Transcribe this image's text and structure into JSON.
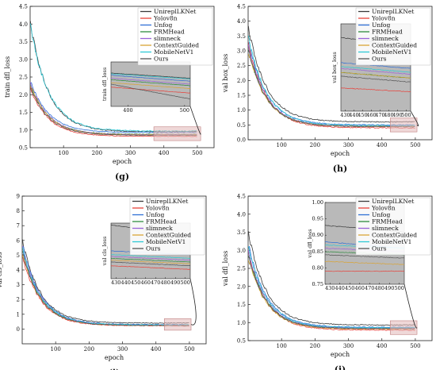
{
  "figure": {
    "colors": {
      "UnireplLKNet": "#3a3a3a",
      "Yolov8n": "#e8413a",
      "Unfog": "#2f6fd6",
      "FRMHead": "#2e8b3e",
      "slimneck": "#9a63d8",
      "ContextGuided": "#d9a436",
      "MobileNetV1": "#2cc9d6",
      "Ours": "#555555"
    },
    "inset_background": "#b9b9b9",
    "highlight_box_color": "#e2b8b8"
  },
  "chart_data": [
    {
      "id": "g",
      "type": "line",
      "caption": "(g)",
      "xlabel": "epoch",
      "ylabel": "train dfl_loss",
      "xlim": [
        0,
        550
      ],
      "ylim": [
        0.5,
        4.5
      ],
      "xticks": [
        100,
        200,
        300,
        400,
        500
      ],
      "yticks": [
        0.5,
        1.0,
        1.5,
        2.0,
        2.5,
        3.0,
        3.5,
        4.0,
        4.5
      ],
      "ytick_labels": [
        "0.5",
        "1.0",
        "1.5",
        "2.0",
        "2.5",
        "3.0",
        "3.5",
        "4.0",
        "4.5"
      ],
      "legend_position": "top-right",
      "series": [
        {
          "name": "UnireplLKNet",
          "start": 4.05,
          "end": 0.95,
          "peak": 4.05
        },
        {
          "name": "Yolov8n",
          "start": 2.2,
          "end": 0.82,
          "peak": 2.2
        },
        {
          "name": "Unfog",
          "start": 2.4,
          "end": 0.93,
          "peak": 2.4
        },
        {
          "name": "FRMHead",
          "start": 2.3,
          "end": 0.88,
          "peak": 2.3
        },
        {
          "name": "slimneck",
          "start": 2.35,
          "end": 0.87,
          "peak": 2.35
        },
        {
          "name": "ContextGuided",
          "start": 2.3,
          "end": 0.86,
          "peak": 2.3
        },
        {
          "name": "MobileNetV1",
          "start": 4.0,
          "end": 0.97,
          "peak": 4.0
        },
        {
          "name": "Ours",
          "start": 2.25,
          "end": 0.85,
          "peak": 2.25
        }
      ],
      "inset": {
        "ylabel": "train dfl_loss",
        "xlim": [
          370,
          510
        ],
        "xticks": [
          400,
          500
        ],
        "ylim": [
          0.6,
          1.2
        ],
        "values_at_start": {
          "UnireplLKNet": 1.05,
          "Yolov8n": 0.86,
          "Unfog": 1.02,
          "FRMHead": 0.96,
          "slimneck": 0.98,
          "ContextGuided": 0.92,
          "MobileNetV1": 1.04,
          "Ours": 0.9
        },
        "values_at_end": {
          "UnireplLKNet": 0.98,
          "Yolov8n": 0.78,
          "Unfog": 0.94,
          "FRMHead": 0.88,
          "slimneck": 0.9,
          "ContextGuided": 0.84,
          "MobileNetV1": 0.97,
          "Ours": 0.7
        }
      }
    },
    {
      "id": "h",
      "type": "line",
      "caption": "(h)",
      "xlabel": "epoch",
      "ylabel": "val box_loss",
      "xlim": [
        0,
        550
      ],
      "ylim": [
        0.0,
        4.5
      ],
      "xticks": [
        100,
        200,
        300,
        400,
        500
      ],
      "yticks": [
        0.0,
        0.5,
        1.0,
        1.5,
        2.0,
        2.5,
        3.0,
        3.5,
        4.0,
        4.5
      ],
      "ytick_labels": [
        "0.0",
        "0.5",
        "1.0",
        "1.5",
        "2.0",
        "2.5",
        "3.0",
        "3.5",
        "4.0",
        "4.5"
      ],
      "legend_position": "top-right",
      "series": [
        {
          "name": "UnireplLKNet",
          "start": 3.8,
          "end": 0.6,
          "peak": 3.8
        },
        {
          "name": "Yolov8n",
          "start": 3.3,
          "end": 0.4,
          "peak": 3.3
        },
        {
          "name": "Unfog",
          "start": 3.4,
          "end": 0.5,
          "peak": 3.4
        },
        {
          "name": "FRMHead",
          "start": 3.1,
          "end": 0.45,
          "peak": 3.1
        },
        {
          "name": "slimneck",
          "start": 3.2,
          "end": 0.46,
          "peak": 3.2
        },
        {
          "name": "ContextGuided",
          "start": 3.0,
          "end": 0.45,
          "peak": 3.0
        },
        {
          "name": "MobileNetV1",
          "start": 3.5,
          "end": 0.48,
          "peak": 3.5
        },
        {
          "name": "Ours",
          "start": 3.1,
          "end": 0.44,
          "peak": 3.1
        }
      ],
      "inset": {
        "ylabel": "val box_loss",
        "xlim": [
          425,
          505
        ],
        "xticks": [
          430,
          440,
          450,
          460,
          470,
          480,
          490,
          500
        ],
        "ylim": [
          0.3,
          0.75
        ],
        "values_at_start": {
          "UnireplLKNet": 0.68,
          "Yolov8n": 0.42,
          "Unfog": 0.55,
          "FRMHead": 0.5,
          "slimneck": 0.52,
          "ContextGuided": 0.5,
          "MobileNetV1": 0.53,
          "Ours": 0.48
        },
        "values_at_end": {
          "UnireplLKNet": 0.63,
          "Yolov8n": 0.4,
          "Unfog": 0.52,
          "FRMHead": 0.47,
          "slimneck": 0.49,
          "ContextGuided": 0.47,
          "MobileNetV1": 0.5,
          "Ours": 0.45
        }
      }
    },
    {
      "id": "i",
      "type": "line",
      "caption": "(i)",
      "xlabel": "epoch",
      "ylabel": "val cls_loss",
      "xlim": [
        0,
        550
      ],
      "ylim": [
        -1,
        9
      ],
      "xticks": [
        100,
        200,
        300,
        400,
        500
      ],
      "yticks": [
        0,
        1,
        2,
        3,
        4,
        5,
        6,
        7,
        8,
        9
      ],
      "ytick_labels": [
        "0",
        "1",
        "2",
        "3",
        "4",
        "5",
        "6",
        "7",
        "8",
        "9"
      ],
      "legend_position": "top-right",
      "series": [
        {
          "name": "UnireplLKNet",
          "start": 6.0,
          "end": 0.4,
          "peak": 6.0
        },
        {
          "name": "Yolov8n",
          "start": 5.0,
          "end": 0.22,
          "peak": 5.0
        },
        {
          "name": "Unfog",
          "start": 5.8,
          "end": 0.3,
          "peak": 5.8
        },
        {
          "name": "FRMHead",
          "start": 5.4,
          "end": 0.26,
          "peak": 5.4
        },
        {
          "name": "slimneck",
          "start": 5.6,
          "end": 0.27,
          "peak": 5.6
        },
        {
          "name": "ContextGuided",
          "start": 5.2,
          "end": 0.25,
          "peak": 5.2
        },
        {
          "name": "MobileNetV1",
          "start": 5.5,
          "end": 0.28,
          "peak": 5.5
        },
        {
          "name": "Ours",
          "start": 5.3,
          "end": 0.24,
          "peak": 5.3
        }
      ],
      "inset": {
        "ylabel": "val cls_loss",
        "xlim": [
          425,
          505
        ],
        "xticks": [
          430,
          440,
          450,
          460,
          470,
          480,
          490,
          500
        ],
        "ylim": [
          0.15,
          0.45
        ],
        "values_at_start": {
          "UnireplLKNet": 0.44,
          "Yolov8n": 0.22,
          "Unfog": 0.3,
          "FRMHead": 0.26,
          "slimneck": 0.27,
          "ContextGuided": 0.25,
          "MobileNetV1": 0.28,
          "Ours": 0.24
        },
        "values_at_end": {
          "UnireplLKNet": 0.38,
          "Yolov8n": 0.2,
          "Unfog": 0.28,
          "FRMHead": 0.24,
          "slimneck": 0.25,
          "ContextGuided": 0.23,
          "MobileNetV1": 0.26,
          "Ours": 0.22
        }
      }
    },
    {
      "id": "j",
      "type": "line",
      "caption": "(j)",
      "xlabel": "epoch",
      "ylabel": "val dfl_loss",
      "xlim": [
        0,
        550
      ],
      "ylim": [
        0.5,
        4.5
      ],
      "xticks": [
        100,
        200,
        300,
        400,
        500
      ],
      "yticks": [
        0.5,
        1.0,
        1.5,
        2.0,
        2.5,
        3.0,
        3.5,
        4.0,
        4.5
      ],
      "ytick_labels": [
        "0.5",
        "1.0",
        "1.5",
        "2.0",
        "2.5",
        "3.0",
        "3.5",
        "4.0",
        "4.5"
      ],
      "legend_position": "top-right",
      "series": [
        {
          "name": "UnireplLKNet",
          "start": 3.5,
          "end": 0.93,
          "peak": 3.5
        },
        {
          "name": "Yolov8n",
          "start": 3.0,
          "end": 0.79,
          "peak": 3.0
        },
        {
          "name": "Unfog",
          "start": 3.2,
          "end": 0.87,
          "peak": 3.2
        },
        {
          "name": "FRMHead",
          "start": 2.9,
          "end": 0.84,
          "peak": 2.9
        },
        {
          "name": "slimneck",
          "start": 3.0,
          "end": 0.85,
          "peak": 3.0
        },
        {
          "name": "ContextGuided",
          "start": 2.8,
          "end": 0.82,
          "peak": 2.8
        },
        {
          "name": "MobileNetV1",
          "start": 3.1,
          "end": 0.86,
          "peak": 3.1
        },
        {
          "name": "Ours",
          "start": 2.9,
          "end": 0.83,
          "peak": 2.9
        }
      ],
      "inset": {
        "ylabel": "val dfl_loss",
        "xlim": [
          425,
          505
        ],
        "xticks": [
          430,
          440,
          450,
          460,
          470,
          480,
          490,
          500
        ],
        "yticks": [
          0.75,
          0.8,
          0.85,
          0.9,
          0.95,
          1.0
        ],
        "ytick_labels": [
          "0.75",
          "0.80",
          "0.85",
          "0.90",
          "0.95",
          "1.00"
        ],
        "ylim": [
          0.75,
          1.0
        ],
        "values_at_start": {
          "UnireplLKNet": 0.93,
          "Yolov8n": 0.79,
          "Unfog": 0.88,
          "FRMHead": 0.85,
          "slimneck": 0.86,
          "ContextGuided": 0.82,
          "MobileNetV1": 0.87,
          "Ours": 0.84
        },
        "values_at_end": {
          "UnireplLKNet": 0.91,
          "Yolov8n": 0.79,
          "Unfog": 0.86,
          "FRMHead": 0.84,
          "slimneck": 0.85,
          "ContextGuided": 0.81,
          "MobileNetV1": 0.86,
          "Ours": 0.83
        }
      }
    }
  ]
}
